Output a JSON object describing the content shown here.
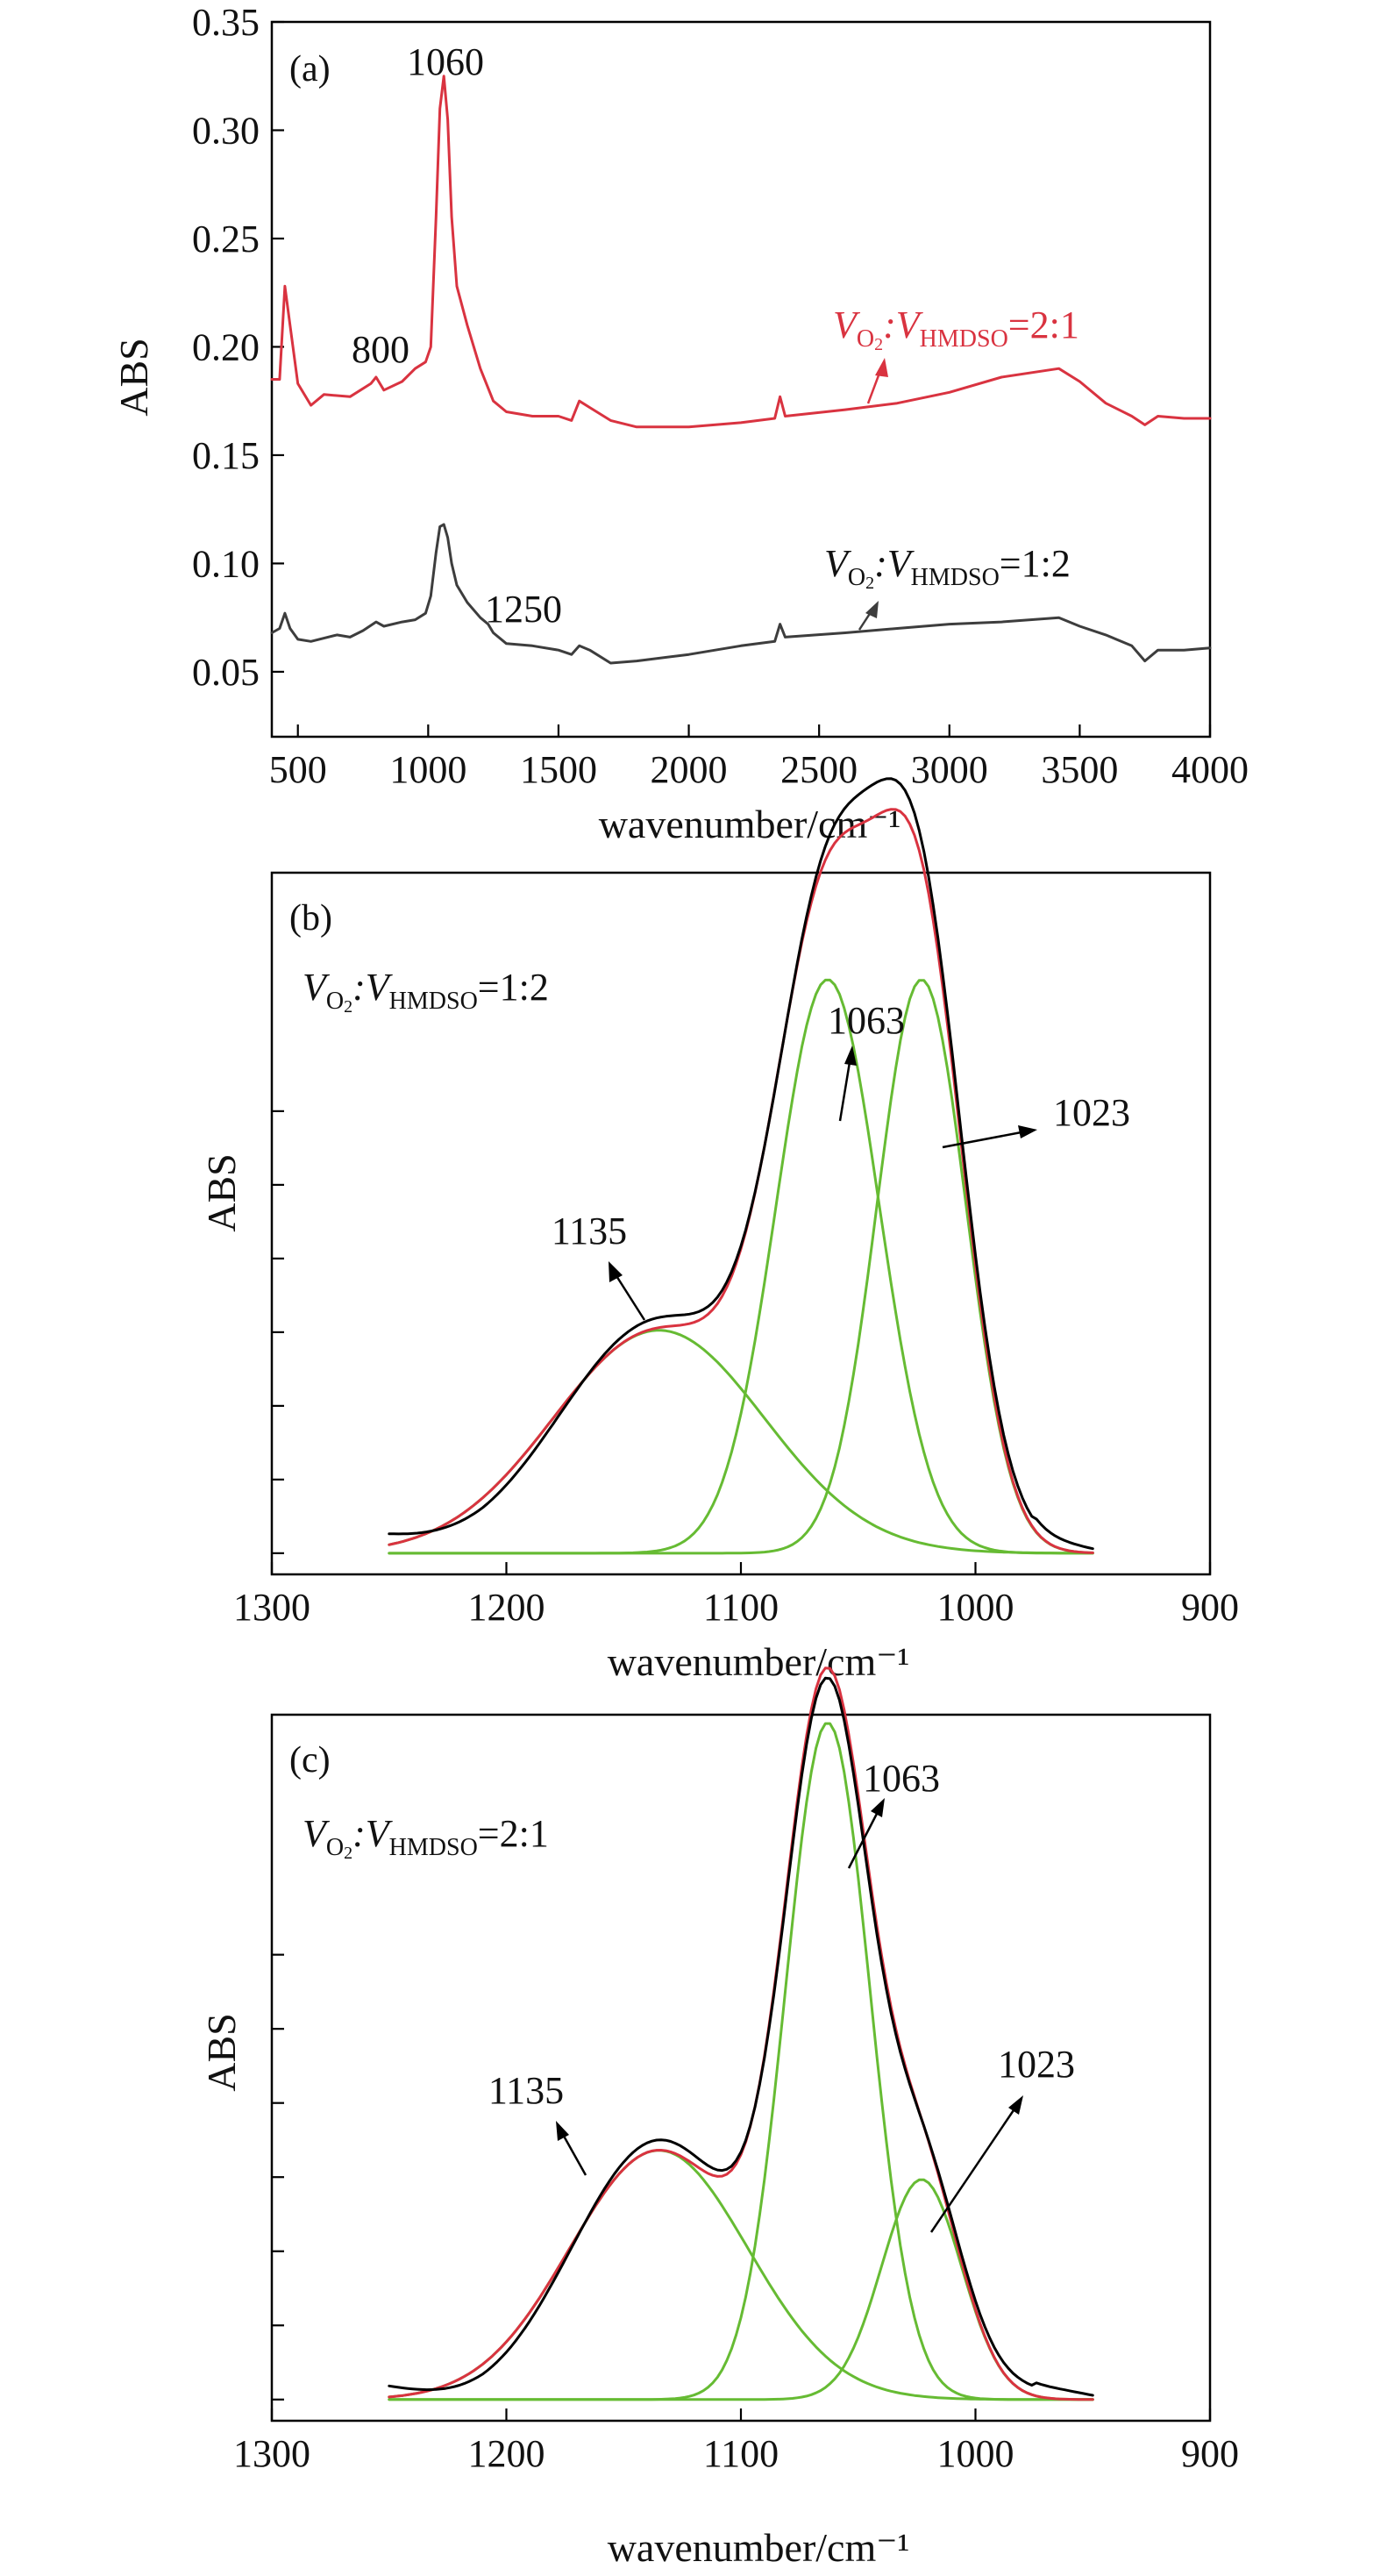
{
  "colors": {
    "red": "#d93340",
    "dark": "#3d3d3d",
    "black": "#000000",
    "green": "#66bb33"
  },
  "chart_data": [
    {
      "type": "line",
      "panel_label": "(a)",
      "xlabel": "wavenumber/cm⁻¹",
      "ylabel": "ABS",
      "xlim": [
        400,
        4000
      ],
      "ylim": [
        0.02,
        0.35
      ],
      "x_ticks": [
        "500",
        "1000",
        "1500",
        "2000",
        "2500",
        "3000",
        "3500",
        "4000"
      ],
      "y_ticks": [
        "0.05",
        "0.10",
        "0.15",
        "0.20",
        "0.25",
        "0.30",
        "0.35"
      ],
      "grid": false,
      "annotations": [
        "1060",
        "800",
        "1250"
      ],
      "series": [
        {
          "name": "V_O2:V_HMDSO=2:1",
          "color": "#d93340",
          "points": [
            [
              400,
              0.185
            ],
            [
              430,
              0.185
            ],
            [
              450,
              0.228
            ],
            [
              470,
              0.21
            ],
            [
              500,
              0.183
            ],
            [
              550,
              0.173
            ],
            [
              600,
              0.178
            ],
            [
              700,
              0.177
            ],
            [
              780,
              0.183
            ],
            [
              800,
              0.186
            ],
            [
              830,
              0.18
            ],
            [
              900,
              0.184
            ],
            [
              950,
              0.19
            ],
            [
              990,
              0.193
            ],
            [
              1010,
              0.2
            ],
            [
              1030,
              0.26
            ],
            [
              1045,
              0.31
            ],
            [
              1060,
              0.325
            ],
            [
              1075,
              0.305
            ],
            [
              1090,
              0.26
            ],
            [
              1110,
              0.228
            ],
            [
              1150,
              0.21
            ],
            [
              1200,
              0.19
            ],
            [
              1250,
              0.175
            ],
            [
              1300,
              0.17
            ],
            [
              1400,
              0.168
            ],
            [
              1500,
              0.168
            ],
            [
              1550,
              0.166
            ],
            [
              1580,
              0.175
            ],
            [
              1620,
              0.172
            ],
            [
              1700,
              0.166
            ],
            [
              1800,
              0.163
            ],
            [
              2000,
              0.163
            ],
            [
              2200,
              0.165
            ],
            [
              2330,
              0.167
            ],
            [
              2350,
              0.177
            ],
            [
              2370,
              0.168
            ],
            [
              2600,
              0.171
            ],
            [
              2800,
              0.174
            ],
            [
              3000,
              0.179
            ],
            [
              3200,
              0.186
            ],
            [
              3420,
              0.19
            ],
            [
              3500,
              0.184
            ],
            [
              3600,
              0.174
            ],
            [
              3700,
              0.168
            ],
            [
              3750,
              0.164
            ],
            [
              3800,
              0.168
            ],
            [
              3900,
              0.167
            ],
            [
              4000,
              0.167
            ]
          ]
        },
        {
          "name": "V_O2:V_HMDSO=1:2",
          "color": "#3d3d3d",
          "points": [
            [
              400,
              0.068
            ],
            [
              430,
              0.07
            ],
            [
              450,
              0.077
            ],
            [
              470,
              0.07
            ],
            [
              500,
              0.065
            ],
            [
              550,
              0.064
            ],
            [
              650,
              0.067
            ],
            [
              700,
              0.066
            ],
            [
              750,
              0.069
            ],
            [
              800,
              0.073
            ],
            [
              830,
              0.071
            ],
            [
              900,
              0.073
            ],
            [
              950,
              0.074
            ],
            [
              990,
              0.077
            ],
            [
              1010,
              0.085
            ],
            [
              1030,
              0.105
            ],
            [
              1045,
              0.117
            ],
            [
              1060,
              0.118
            ],
            [
              1075,
              0.112
            ],
            [
              1090,
              0.1
            ],
            [
              1110,
              0.09
            ],
            [
              1150,
              0.082
            ],
            [
              1200,
              0.075
            ],
            [
              1230,
              0.072
            ],
            [
              1250,
              0.068
            ],
            [
              1300,
              0.063
            ],
            [
              1400,
              0.062
            ],
            [
              1500,
              0.06
            ],
            [
              1550,
              0.058
            ],
            [
              1580,
              0.062
            ],
            [
              1620,
              0.06
            ],
            [
              1700,
              0.054
            ],
            [
              1800,
              0.055
            ],
            [
              2000,
              0.058
            ],
            [
              2200,
              0.062
            ],
            [
              2330,
              0.064
            ],
            [
              2350,
              0.072
            ],
            [
              2370,
              0.066
            ],
            [
              2600,
              0.068
            ],
            [
              2800,
              0.07
            ],
            [
              3000,
              0.072
            ],
            [
              3200,
              0.073
            ],
            [
              3420,
              0.075
            ],
            [
              3500,
              0.071
            ],
            [
              3600,
              0.067
            ],
            [
              3700,
              0.062
            ],
            [
              3750,
              0.055
            ],
            [
              3800,
              0.06
            ],
            [
              3900,
              0.06
            ],
            [
              4000,
              0.061
            ]
          ]
        }
      ],
      "legend_labels": [
        {
          "base": "V",
          "sub1": "O",
          "sub2": "2",
          "sep": ":V",
          "sub3": "HMDSO",
          "ratio": "=2:1"
        },
        {
          "base": "V",
          "sub1": "O",
          "sub2": "2",
          "sep": ":V",
          "sub3": "HMDSO",
          "ratio": "=1:2"
        }
      ]
    },
    {
      "type": "line",
      "panel_label": "(b)",
      "xlabel": "wavenumber/cm⁻¹",
      "ylabel": "ABS",
      "xlim": [
        1300,
        900
      ],
      "x_ticks": [
        "1300",
        "1200",
        "1100",
        "1000",
        "900"
      ],
      "grid": false,
      "legend_label": {
        "base": "V",
        "sub1": "O",
        "sub2": "2",
        "sep": ":V",
        "sub3": "HMDSO",
        "ratio": "=1:2"
      },
      "annotations": [
        "1135",
        "1063",
        "1023"
      ],
      "components": [
        {
          "center": 1135,
          "amplitude": 0.54,
          "sigma": 45
        },
        {
          "center": 1063,
          "amplitude": 1.39,
          "sigma": 22
        },
        {
          "center": 1023,
          "amplitude": 1.39,
          "sigma": 19
        }
      ],
      "baseline": 0.03,
      "series_colors": {
        "measured": "#000000",
        "fit": "#d93340",
        "components": "#66bb33"
      }
    },
    {
      "type": "line",
      "panel_label": "(c)",
      "xlabel": "wavenumber/cm⁻¹",
      "ylabel": "ABS",
      "xlim": [
        1300,
        900
      ],
      "x_ticks": [
        "1300",
        "1200",
        "1100",
        "1000",
        "900"
      ],
      "grid": false,
      "legend_label": {
        "base": "V",
        "sub1": "O",
        "sub2": "2",
        "sep": ":V",
        "sub3": "HMDSO",
        "ratio": "=2:1"
      },
      "annotations": [
        "1135",
        "1063",
        "1023"
      ],
      "components": [
        {
          "center": 1135,
          "amplitude": 0.6,
          "sigma": 38
        },
        {
          "center": 1063,
          "amplitude": 1.63,
          "sigma": 18
        },
        {
          "center": 1023,
          "amplitude": 0.53,
          "sigma": 17
        }
      ],
      "baseline": 0.03,
      "series_colors": {
        "measured": "#000000",
        "fit": "#d93340",
        "components": "#66bb33"
      }
    }
  ]
}
